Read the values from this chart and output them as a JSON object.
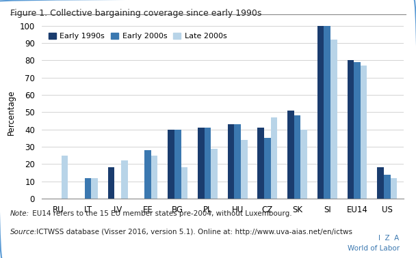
{
  "title": "Figure 1. Collective bargaining coverage since early 1990s",
  "ylabel": "Percentage",
  "categories": [
    "RU",
    "LT",
    "LV",
    "EE",
    "BG",
    "PL",
    "HU",
    "CZ",
    "SK",
    "SI",
    "EU14",
    "US"
  ],
  "series": {
    "Early 1990s": [
      0,
      0,
      18,
      0,
      40,
      41,
      43,
      41,
      51,
      100,
      80,
      18
    ],
    "Early 2000s": [
      0,
      12,
      0,
      28,
      40,
      41,
      43,
      35,
      48,
      100,
      79,
      14
    ],
    "Late 2000s": [
      25,
      12,
      22,
      25,
      18,
      29,
      34,
      47,
      40,
      92,
      77,
      12
    ]
  },
  "colors": {
    "Early 1990s": "#1a3c6e",
    "Early 2000s": "#3b78b0",
    "Late 2000s": "#b8d4e8"
  },
  "ylim": [
    0,
    100
  ],
  "yticks": [
    0,
    10,
    20,
    30,
    40,
    50,
    60,
    70,
    80,
    90,
    100
  ],
  "legend_order": [
    "Early 1990s",
    "Early 2000s",
    "Late 2000s"
  ],
  "note_italic": "Note:",
  "note_regular": " EU14 refers to the 15 EU member states pre-2004, without Luxembourg.",
  "source_italic": "Source:",
  "source_regular": " ICTWSS database (Visser 2016, version 5.1). Online at: http://www.uva-aias.net/en/ictws",
  "iza_line1": "I  Z  A",
  "iza_line2": "World of Labor",
  "background_color": "#ffffff",
  "bar_width": 0.22,
  "border_color": "#5b9bd5"
}
